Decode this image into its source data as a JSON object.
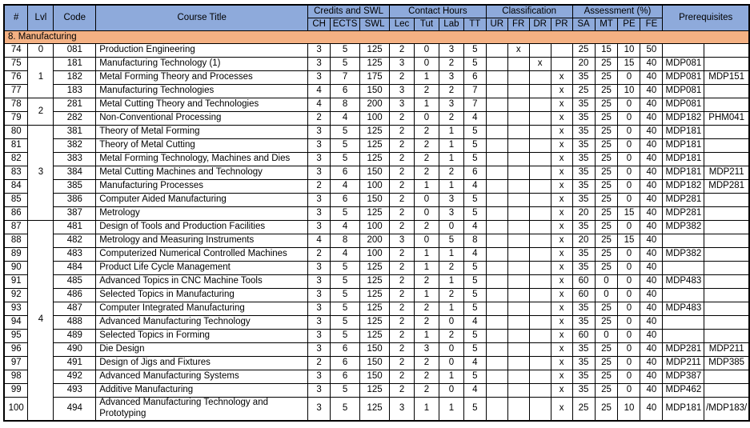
{
  "colors": {
    "header_bg": "#8EAADB",
    "section_bg": "#F4B183",
    "border": "#000000",
    "text": "#000000"
  },
  "table": {
    "header": {
      "num": "#",
      "lvl": "Lvl",
      "code": "Code",
      "title": "Course Title",
      "credits_group": "Credits and SWL",
      "contact_group": "Contact Hours",
      "classification_group": "Classification",
      "assessment_group": "Assessment (%)",
      "prerequisites": "Prerequisites"
    },
    "sub_headers": [
      "CH",
      "ECTS",
      "SWL",
      "Lec",
      "Tut",
      "Lab",
      "TT",
      "UR",
      "FR",
      "DR",
      "PR",
      "SA",
      "MT",
      "PE",
      "FE"
    ],
    "section_title": "8. Manufacturing",
    "rows": [
      {
        "num": "74",
        "lvl": "0",
        "lvl_span": 1,
        "code": "081",
        "title": "Production Engineering",
        "ch": "3",
        "ects": "5",
        "swl": "125",
        "lec": "2",
        "tut": "0",
        "lab": "3",
        "tt": "5",
        "ur": "",
        "fr": "x",
        "dr": "",
        "pr": "",
        "sa": "25",
        "mt": "15",
        "pe": "10",
        "fe": "50",
        "pre1": "",
        "pre2": ""
      },
      {
        "num": "75",
        "lvl": "1",
        "lvl_span": 3,
        "code": "181",
        "title": "Manufacturing Technology (1)",
        "ch": "3",
        "ects": "5",
        "swl": "125",
        "lec": "3",
        "tut": "0",
        "lab": "2",
        "tt": "5",
        "ur": "",
        "fr": "",
        "dr": "x",
        "pr": "",
        "sa": "20",
        "mt": "25",
        "pe": "15",
        "fe": "40",
        "pre1": "MDP081",
        "pre2": ""
      },
      {
        "num": "76",
        "code": "182",
        "title": "Metal Forming Theory and Processes",
        "ch": "3",
        "ects": "7",
        "swl": "175",
        "lec": "2",
        "tut": "1",
        "lab": "3",
        "tt": "6",
        "ur": "",
        "fr": "",
        "dr": "",
        "pr": "x",
        "sa": "35",
        "mt": "25",
        "pe": "0",
        "fe": "40",
        "pre1": "MDP081",
        "pre2": "MDP151"
      },
      {
        "num": "77",
        "code": "183",
        "title": "Manufacturing Technologies",
        "ch": "4",
        "ects": "6",
        "swl": "150",
        "lec": "3",
        "tut": "2",
        "lab": "2",
        "tt": "7",
        "ur": "",
        "fr": "",
        "dr": "",
        "pr": "x",
        "sa": "25",
        "mt": "25",
        "pe": "10",
        "fe": "40",
        "pre1": "MDP081",
        "pre2": ""
      },
      {
        "num": "78",
        "lvl": "2",
        "lvl_span": 2,
        "code": "281",
        "title": "Metal Cutting Theory and Technologies",
        "ch": "4",
        "ects": "8",
        "swl": "200",
        "lec": "3",
        "tut": "1",
        "lab": "3",
        "tt": "7",
        "ur": "",
        "fr": "",
        "dr": "",
        "pr": "x",
        "sa": "35",
        "mt": "25",
        "pe": "0",
        "fe": "40",
        "pre1": "MDP081",
        "pre2": ""
      },
      {
        "num": "79",
        "code": "282",
        "title": "Non-Conventional Processing",
        "ch": "2",
        "ects": "4",
        "swl": "100",
        "lec": "2",
        "tut": "0",
        "lab": "2",
        "tt": "4",
        "ur": "",
        "fr": "",
        "dr": "",
        "pr": "x",
        "sa": "35",
        "mt": "25",
        "pe": "0",
        "fe": "40",
        "pre1": "MDP182",
        "pre2": "PHM041"
      },
      {
        "num": "80",
        "lvl": "3",
        "lvl_span": 7,
        "code": "381",
        "title": "Theory of Metal Forming",
        "ch": "3",
        "ects": "5",
        "swl": "125",
        "lec": "2",
        "tut": "2",
        "lab": "1",
        "tt": "5",
        "ur": "",
        "fr": "",
        "dr": "",
        "pr": "x",
        "sa": "35",
        "mt": "25",
        "pe": "0",
        "fe": "40",
        "pre1": "MDP181",
        "pre2": ""
      },
      {
        "num": "81",
        "code": "382",
        "title": "Theory of Metal Cutting",
        "ch": "3",
        "ects": "5",
        "swl": "125",
        "lec": "2",
        "tut": "2",
        "lab": "1",
        "tt": "5",
        "ur": "",
        "fr": "",
        "dr": "",
        "pr": "x",
        "sa": "35",
        "mt": "25",
        "pe": "0",
        "fe": "40",
        "pre1": "MDP181",
        "pre2": ""
      },
      {
        "num": "82",
        "code": "383",
        "title": "Metal Forming Technology, Machines and Dies",
        "ch": "3",
        "ects": "5",
        "swl": "125",
        "lec": "2",
        "tut": "2",
        "lab": "1",
        "tt": "5",
        "ur": "",
        "fr": "",
        "dr": "",
        "pr": "x",
        "sa": "35",
        "mt": "25",
        "pe": "0",
        "fe": "40",
        "pre1": "MDP181",
        "pre2": ""
      },
      {
        "num": "83",
        "code": "384",
        "title": "Metal Cutting Machines and Technology",
        "ch": "3",
        "ects": "6",
        "swl": "150",
        "lec": "2",
        "tut": "2",
        "lab": "2",
        "tt": "6",
        "ur": "",
        "fr": "",
        "dr": "",
        "pr": "x",
        "sa": "35",
        "mt": "25",
        "pe": "0",
        "fe": "40",
        "pre1": "MDP181",
        "pre2": "MDP211"
      },
      {
        "num": "84",
        "code": "385",
        "title": "Manufacturing Processes",
        "ch": "2",
        "ects": "4",
        "swl": "100",
        "lec": "2",
        "tut": "1",
        "lab": "1",
        "tt": "4",
        "ur": "",
        "fr": "",
        "dr": "",
        "pr": "x",
        "sa": "35",
        "mt": "25",
        "pe": "0",
        "fe": "40",
        "pre1": "MDP182",
        "pre2": "MDP281"
      },
      {
        "num": "85",
        "code": "386",
        "title": "Computer Aided Manufacturing",
        "ch": "3",
        "ects": "6",
        "swl": "150",
        "lec": "2",
        "tut": "0",
        "lab": "3",
        "tt": "5",
        "ur": "",
        "fr": "",
        "dr": "",
        "pr": "x",
        "sa": "35",
        "mt": "25",
        "pe": "0",
        "fe": "40",
        "pre1": "MDP281",
        "pre2": ""
      },
      {
        "num": "86",
        "code": "387",
        "title": "Metrology",
        "ch": "3",
        "ects": "5",
        "swl": "125",
        "lec": "2",
        "tut": "0",
        "lab": "3",
        "tt": "5",
        "ur": "",
        "fr": "",
        "dr": "",
        "pr": "x",
        "sa": "20",
        "mt": "25",
        "pe": "15",
        "fe": "40",
        "pre1": "MDP281",
        "pre2": ""
      },
      {
        "num": "87",
        "lvl": "4",
        "lvl_span": 14,
        "code": "481",
        "title": "Design of Tools and Production Facilities",
        "ch": "3",
        "ects": "4",
        "swl": "100",
        "lec": "2",
        "tut": "2",
        "lab": "0",
        "tt": "4",
        "ur": "",
        "fr": "",
        "dr": "",
        "pr": "x",
        "sa": "35",
        "mt": "25",
        "pe": "0",
        "fe": "40",
        "pre1": "MDP382",
        "pre2": ""
      },
      {
        "num": "88",
        "code": "482",
        "title": "Metrology and Measuring Instruments",
        "ch": "4",
        "ects": "8",
        "swl": "200",
        "lec": "3",
        "tut": "0",
        "lab": "5",
        "tt": "8",
        "ur": "",
        "fr": "",
        "dr": "",
        "pr": "x",
        "sa": "20",
        "mt": "25",
        "pe": "15",
        "fe": "40",
        "pre1": "",
        "pre2": ""
      },
      {
        "num": "89",
        "code": "483",
        "title": "Computerized Numerical Controlled Machines",
        "ch": "2",
        "ects": "4",
        "swl": "100",
        "lec": "2",
        "tut": "1",
        "lab": "1",
        "tt": "4",
        "ur": "",
        "fr": "",
        "dr": "",
        "pr": "x",
        "sa": "35",
        "mt": "25",
        "pe": "0",
        "fe": "40",
        "pre1": "MDP382",
        "pre2": ""
      },
      {
        "num": "90",
        "code": "484",
        "title": "Product Life Cycle Management",
        "ch": "3",
        "ects": "5",
        "swl": "125",
        "lec": "2",
        "tut": "1",
        "lab": "2",
        "tt": "5",
        "ur": "",
        "fr": "",
        "dr": "",
        "pr": "x",
        "sa": "35",
        "mt": "25",
        "pe": "0",
        "fe": "40",
        "pre1": "",
        "pre2": ""
      },
      {
        "num": "91",
        "code": "485",
        "title": "Advanced Topics in CNC Machine Tools",
        "ch": "3",
        "ects": "5",
        "swl": "125",
        "lec": "2",
        "tut": "2",
        "lab": "1",
        "tt": "5",
        "ur": "",
        "fr": "",
        "dr": "",
        "pr": "x",
        "sa": "60",
        "mt": "0",
        "pe": "0",
        "fe": "40",
        "pre1": "MDP483",
        "pre2": ""
      },
      {
        "num": "92",
        "code": "486",
        "title": "Selected Topics in Manufacturing",
        "ch": "3",
        "ects": "5",
        "swl": "125",
        "lec": "2",
        "tut": "1",
        "lab": "2",
        "tt": "5",
        "ur": "",
        "fr": "",
        "dr": "",
        "pr": "x",
        "sa": "60",
        "mt": "0",
        "pe": "0",
        "fe": "40",
        "pre1": "",
        "pre2": ""
      },
      {
        "num": "93",
        "code": "487",
        "title": "Computer Integrated Manufacturing",
        "ch": "3",
        "ects": "5",
        "swl": "125",
        "lec": "2",
        "tut": "2",
        "lab": "1",
        "tt": "5",
        "ur": "",
        "fr": "",
        "dr": "",
        "pr": "x",
        "sa": "35",
        "mt": "25",
        "pe": "0",
        "fe": "40",
        "pre1": "MDP483",
        "pre2": ""
      },
      {
        "num": "94",
        "code": "488",
        "title": "Advanced Manufacturing Technology",
        "ch": "3",
        "ects": "5",
        "swl": "125",
        "lec": "2",
        "tut": "2",
        "lab": "0",
        "tt": "4",
        "ur": "",
        "fr": "",
        "dr": "",
        "pr": "x",
        "sa": "35",
        "mt": "25",
        "pe": "0",
        "fe": "40",
        "pre1": "",
        "pre2": ""
      },
      {
        "num": "95",
        "code": "489",
        "title": "Selected Topics in Forming",
        "ch": "3",
        "ects": "5",
        "swl": "125",
        "lec": "2",
        "tut": "1",
        "lab": "2",
        "tt": "5",
        "ur": "",
        "fr": "",
        "dr": "",
        "pr": "x",
        "sa": "60",
        "mt": "0",
        "pe": "0",
        "fe": "40",
        "pre1": "",
        "pre2": ""
      },
      {
        "num": "96",
        "code": "490",
        "title": "Die Design",
        "ch": "3",
        "ects": "6",
        "swl": "150",
        "lec": "2",
        "tut": "3",
        "lab": "0",
        "tt": "5",
        "ur": "",
        "fr": "",
        "dr": "",
        "pr": "x",
        "sa": "35",
        "mt": "25",
        "pe": "0",
        "fe": "40",
        "pre1": "MDP281",
        "pre2": "MDP211"
      },
      {
        "num": "97",
        "code": "491",
        "title": "Design of Jigs and Fixtures",
        "ch": "2",
        "ects": "6",
        "swl": "150",
        "lec": "2",
        "tut": "2",
        "lab": "0",
        "tt": "4",
        "ur": "",
        "fr": "",
        "dr": "",
        "pr": "x",
        "sa": "35",
        "mt": "25",
        "pe": "0",
        "fe": "40",
        "pre1": "MDP211",
        "pre2": "MDP385"
      },
      {
        "num": "98",
        "code": "492",
        "title": "Advanced Manufacturing Systems",
        "ch": "3",
        "ects": "6",
        "swl": "150",
        "lec": "2",
        "tut": "2",
        "lab": "1",
        "tt": "5",
        "ur": "",
        "fr": "",
        "dr": "",
        "pr": "x",
        "sa": "35",
        "mt": "25",
        "pe": "0",
        "fe": "40",
        "pre1": "MDP387",
        "pre2": ""
      },
      {
        "num": "99",
        "code": "493",
        "title": "Additive Manufacturing",
        "ch": "3",
        "ects": "5",
        "swl": "125",
        "lec": "2",
        "tut": "2",
        "lab": "0",
        "tt": "4",
        "ur": "",
        "fr": "",
        "dr": "",
        "pr": "x",
        "sa": "35",
        "mt": "25",
        "pe": "0",
        "fe": "40",
        "pre1": "MDP462",
        "pre2": ""
      },
      {
        "num": "100",
        "code": "494",
        "title": "Advanced Manufacturing Technology and Prototyping",
        "ch": "3",
        "ects": "5",
        "swl": "125",
        "lec": "3",
        "tut": "1",
        "lab": "1",
        "tt": "5",
        "ur": "",
        "fr": "",
        "dr": "",
        "pr": "x",
        "sa": "25",
        "mt": "25",
        "pe": "10",
        "fe": "40",
        "pre1": "MDP181",
        "pre2": "/MDP183/"
      }
    ]
  }
}
